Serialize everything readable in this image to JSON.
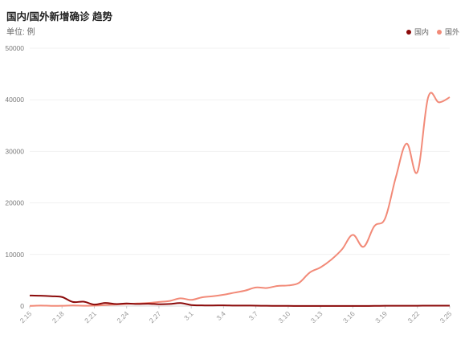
{
  "header": {
    "title": "国内/国外新增确诊 趋势",
    "unit_label": "单位: 例"
  },
  "chart_data": {
    "type": "line",
    "title": "国内/国外新增确诊 趋势",
    "subtitle": "单位: 例",
    "xlabel": "",
    "ylabel": "",
    "ylim": [
      0,
      50000
    ],
    "yticks": [
      0,
      10000,
      20000,
      30000,
      40000,
      50000
    ],
    "grid": true,
    "legend_position": "top-right",
    "x": [
      "2.15",
      "2.16",
      "2.17",
      "2.18",
      "2.19",
      "2.20",
      "2.21",
      "2.22",
      "2.23",
      "2.24",
      "2.25",
      "2.26",
      "2.27",
      "2.28",
      "2.29",
      "3.1",
      "3.2",
      "3.3",
      "3.4",
      "3.5",
      "3.6",
      "3.7",
      "3.8",
      "3.9",
      "3.10",
      "3.11",
      "3.12",
      "3.13",
      "3.14",
      "3.15",
      "3.16",
      "3.17",
      "3.18",
      "3.19",
      "3.20",
      "3.21",
      "3.22",
      "3.23",
      "3.24",
      "3.25"
    ],
    "x_tick_labels": [
      "2.15",
      "2.18",
      "2.21",
      "2.24",
      "2.27",
      "3.1",
      "3.4",
      "3.7",
      "3.10",
      "3.13",
      "3.16",
      "3.19",
      "3.22",
      "3.25"
    ],
    "series": [
      {
        "name": "国内",
        "color": "#8b0a0a",
        "values": [
          2050,
          2000,
          1900,
          1750,
          800,
          850,
          300,
          600,
          400,
          500,
          400,
          450,
          350,
          400,
          580,
          200,
          130,
          120,
          140,
          100,
          100,
          80,
          50,
          40,
          30,
          20,
          15,
          20,
          20,
          20,
          20,
          20,
          30,
          50,
          60,
          50,
          60,
          80,
          70,
          70
        ]
      },
      {
        "name": "国外",
        "color": "#f28a78",
        "values": [
          30,
          100,
          40,
          50,
          120,
          60,
          100,
          200,
          300,
          400,
          500,
          600,
          800,
          1000,
          1500,
          1200,
          1700,
          1900,
          2200,
          2600,
          3000,
          3600,
          3500,
          3900,
          4000,
          4500,
          6500,
          7500,
          9000,
          11000,
          13800,
          11500,
          15500,
          17000,
          25000,
          31500,
          26000,
          40500,
          39500,
          40500
        ]
      }
    ]
  }
}
